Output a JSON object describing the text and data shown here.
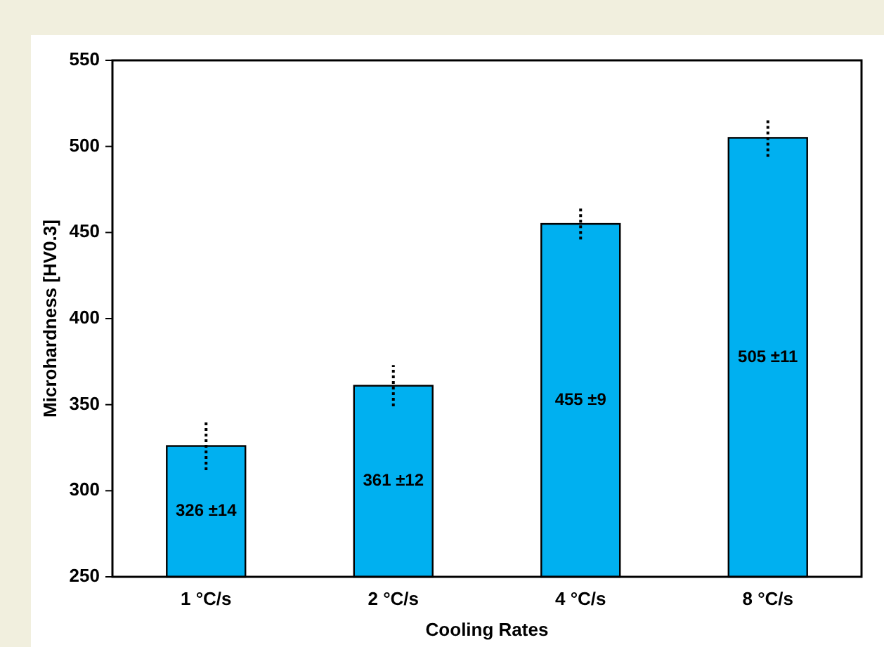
{
  "chart_data": {
    "type": "bar",
    "xlabel": "Cooling Rates",
    "ylabel": "Microhardness [HV0.3]",
    "categories": [
      "1 °C/s",
      "2 °C/s",
      "4 °C/s",
      "8 °C/s"
    ],
    "values": [
      326,
      361,
      455,
      505
    ],
    "errors": [
      14,
      12,
      9,
      11
    ],
    "value_labels": [
      "326 ±14",
      "361 ±12",
      "455 ±9",
      "505 ±11"
    ],
    "color": "#00b0f0",
    "ylim": [
      250,
      550
    ],
    "yticks": [
      250,
      300,
      350,
      400,
      450,
      500,
      550
    ],
    "grid": false
  }
}
